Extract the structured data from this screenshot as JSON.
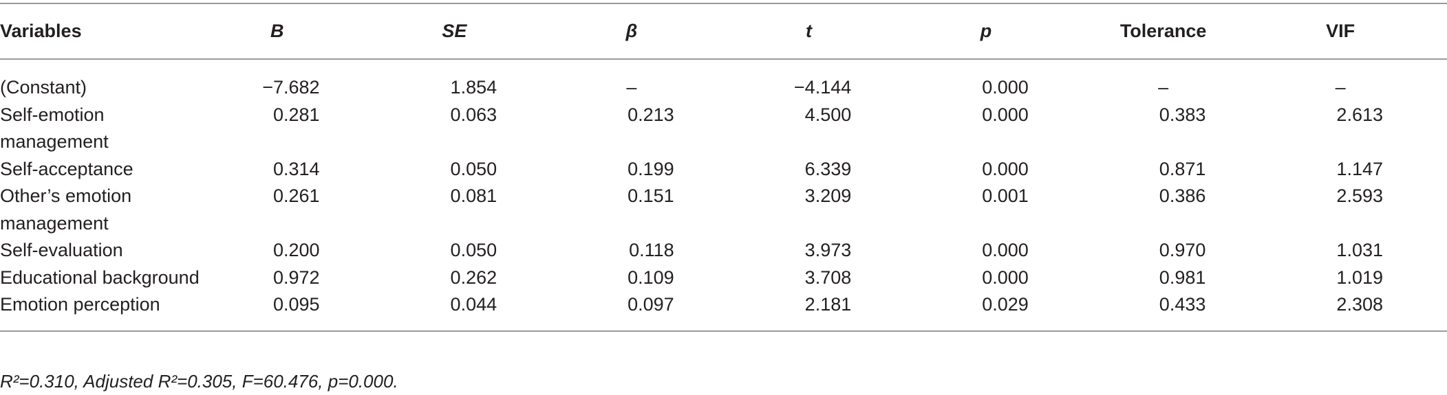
{
  "table": {
    "header": [
      "Variables",
      "B",
      "SE",
      "β",
      "t",
      "p",
      "Tolerance",
      "VIF"
    ],
    "rows": [
      [
        "(Constant)",
        "−7.682",
        "1.854",
        "–",
        "−4.144",
        "0.000",
        "–",
        "–"
      ],
      [
        "Self-emotion management",
        "0.281",
        "0.063",
        "0.213",
        "4.500",
        "0.000",
        "0.383",
        "2.613"
      ],
      [
        "Self-acceptance",
        "0.314",
        "0.050",
        "0.199",
        "6.339",
        "0.000",
        "0.871",
        "1.147"
      ],
      [
        "Other’s emotion management",
        "0.261",
        "0.081",
        "0.151",
        "3.209",
        "0.001",
        "0.386",
        "2.593"
      ],
      [
        "Self-evaluation",
        "0.200",
        "0.050",
        "0.118",
        "3.973",
        "0.000",
        "0.970",
        "1.031"
      ],
      [
        "Educational background",
        "0.972",
        "0.262",
        "0.109",
        "3.708",
        "0.000",
        "0.981",
        "1.019"
      ],
      [
        "Emotion perception",
        "0.095",
        "0.044",
        "0.097",
        "2.181",
        "0.029",
        "0.433",
        "2.308"
      ]
    ],
    "footnote": "R²=0.310, Adjusted R²=0.305, F=60.476, p=0.000."
  }
}
